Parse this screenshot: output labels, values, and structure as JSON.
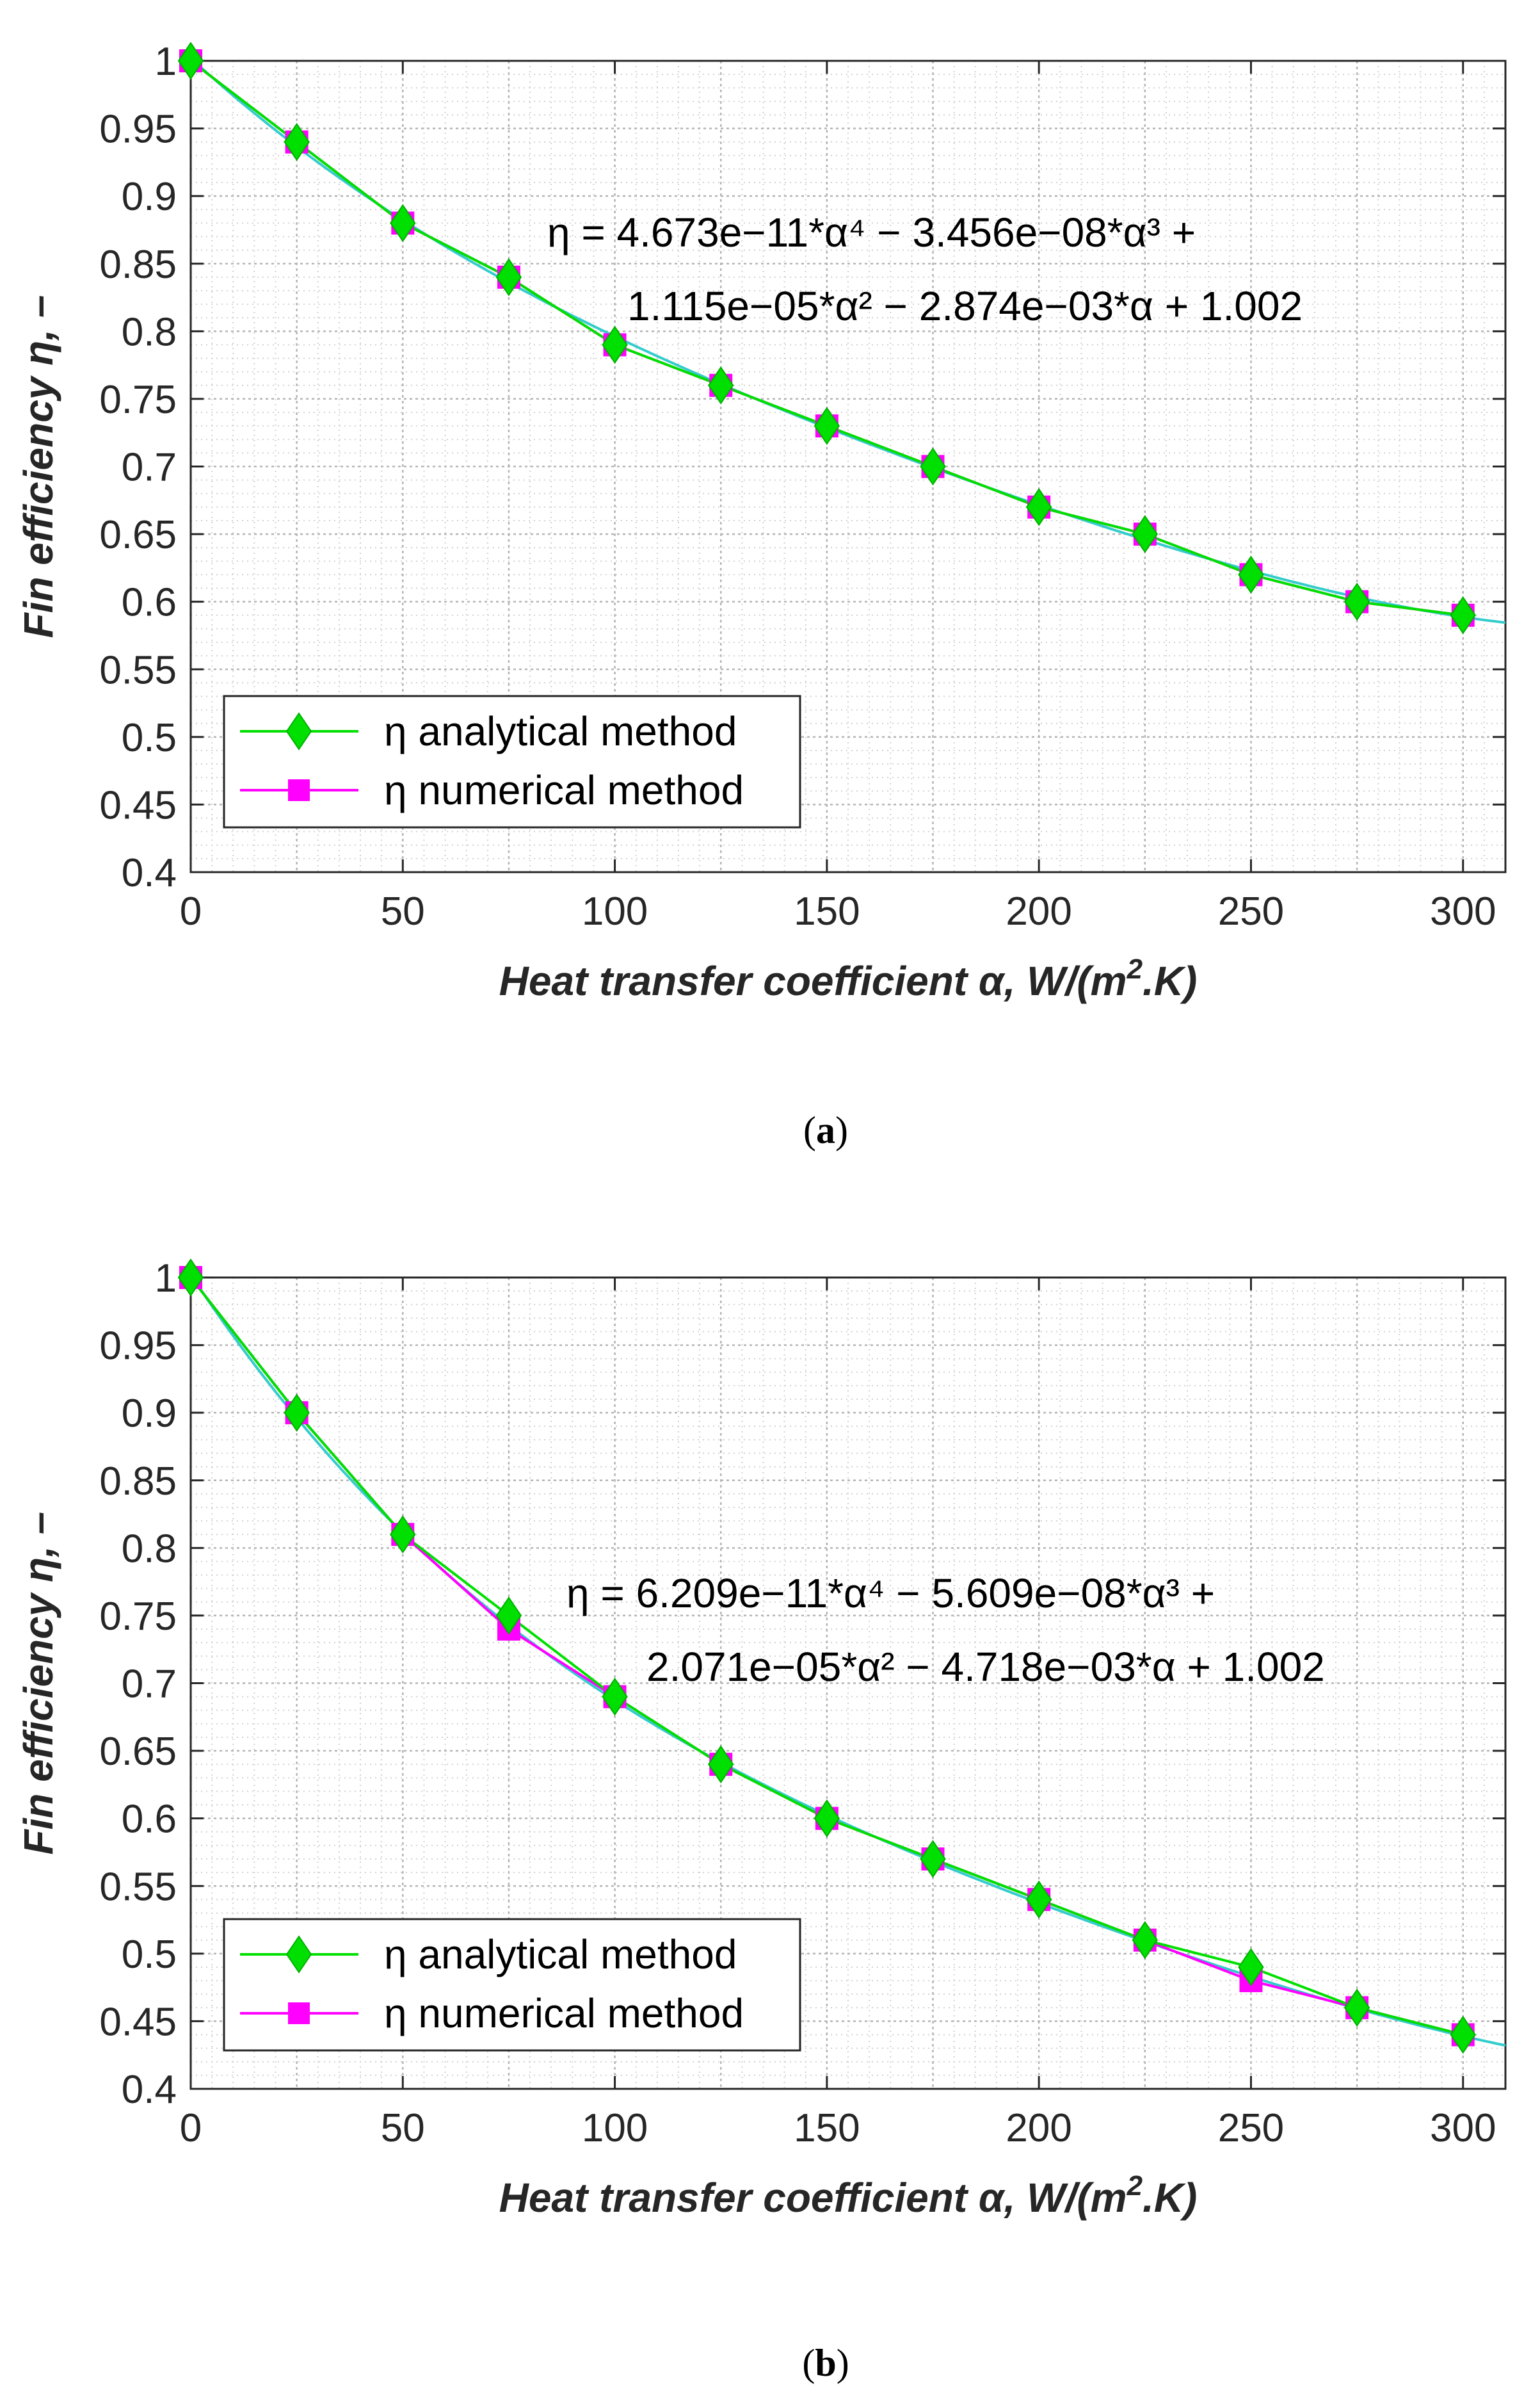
{
  "chart_data": [
    {
      "type": "line",
      "panel": "a",
      "caption_letter": "a",
      "title": "",
      "xlabel_text": "Heat transfer coefficient α, W/(m",
      "xlabel_sup": "2",
      "xlabel_tail": ".K)",
      "ylabel_text": "Fin efficiency η, –",
      "xlim": [
        0,
        310
      ],
      "ylim": [
        0.4,
        1.0
      ],
      "xticks": [
        0,
        50,
        100,
        150,
        200,
        250,
        300
      ],
      "xtick_labels": [
        "0",
        "50",
        "100",
        "150",
        "200",
        "250",
        "300"
      ],
      "yticks": [
        0.4,
        0.45,
        0.5,
        0.55,
        0.6,
        0.65,
        0.7,
        0.75,
        0.8,
        0.85,
        0.9,
        0.95,
        1.0
      ],
      "ytick_labels": [
        "0.4",
        "0.45",
        "0.5",
        "0.55",
        "0.6",
        "0.65",
        "0.7",
        "0.75",
        "0.8",
        "0.85",
        "0.9",
        "0.95",
        "1"
      ],
      "grid": true,
      "legend_position": "bottom-left",
      "x": [
        0,
        25,
        50,
        75,
        100,
        125,
        150,
        175,
        200,
        225,
        250,
        275,
        300
      ],
      "series": [
        {
          "name": "η analytical method",
          "color": "#00e000",
          "marker": "diamond",
          "values": [
            1.0,
            0.94,
            0.88,
            0.84,
            0.79,
            0.76,
            0.73,
            0.7,
            0.67,
            0.65,
            0.62,
            0.6,
            0.59
          ]
        },
        {
          "name": "η numerical method",
          "color": "#ff00ff",
          "marker": "square",
          "values": [
            1.0,
            0.94,
            0.88,
            0.84,
            0.79,
            0.76,
            0.73,
            0.7,
            0.67,
            0.65,
            0.62,
            0.6,
            0.59
          ]
        }
      ],
      "fit": {
        "color": "#33cccc",
        "coeffs": [
          4.673e-11,
          -3.456e-08,
          1.115e-05,
          -0.002874,
          1.002
        ],
        "x_range": [
          0,
          310
        ]
      },
      "annotation": {
        "line1": "η = 4.673e−11*α⁴ − 3.456e−08*α³ +",
        "line2": "1.115e−05*α² − 2.874e−03*α + 1.002"
      }
    },
    {
      "type": "line",
      "panel": "b",
      "caption_letter": "b",
      "title": "",
      "xlabel_text": "Heat transfer coefficient α, W/(m",
      "xlabel_sup": "2",
      "xlabel_tail": ".K)",
      "ylabel_text": "Fin efficiency η, –",
      "xlim": [
        0,
        310
      ],
      "ylim": [
        0.4,
        1.0
      ],
      "xticks": [
        0,
        50,
        100,
        150,
        200,
        250,
        300
      ],
      "xtick_labels": [
        "0",
        "50",
        "100",
        "150",
        "200",
        "250",
        "300"
      ],
      "yticks": [
        0.4,
        0.45,
        0.5,
        0.55,
        0.6,
        0.65,
        0.7,
        0.75,
        0.8,
        0.85,
        0.9,
        0.95,
        1.0
      ],
      "ytick_labels": [
        "0.4",
        "0.45",
        "0.5",
        "0.55",
        "0.6",
        "0.65",
        "0.7",
        "0.75",
        "0.8",
        "0.85",
        "0.9",
        "0.95",
        "1"
      ],
      "grid": true,
      "legend_position": "bottom-left",
      "x": [
        0,
        25,
        50,
        75,
        100,
        125,
        150,
        175,
        200,
        225,
        250,
        275,
        300
      ],
      "series": [
        {
          "name": "η analytical method",
          "color": "#00e000",
          "marker": "diamond",
          "values": [
            1.0,
            0.9,
            0.81,
            0.75,
            0.69,
            0.64,
            0.6,
            0.57,
            0.54,
            0.51,
            0.49,
            0.46,
            0.44
          ]
        },
        {
          "name": "η numerical method",
          "color": "#ff00ff",
          "marker": "square",
          "values": [
            1.0,
            0.9,
            0.81,
            0.74,
            0.69,
            0.64,
            0.6,
            0.57,
            0.54,
            0.51,
            0.48,
            0.46,
            0.44
          ]
        }
      ],
      "fit": {
        "color": "#33cccc",
        "coeffs": [
          6.209e-11,
          -5.609e-08,
          2.071e-05,
          -0.004718,
          1.002
        ],
        "x_range": [
          0,
          310
        ]
      },
      "annotation": {
        "line1": "η = 6.209e−11*α⁴ − 5.609e−08*α³ +",
        "line2": "2.071e−05*α² − 4.718e−03*α + 1.002"
      }
    }
  ]
}
